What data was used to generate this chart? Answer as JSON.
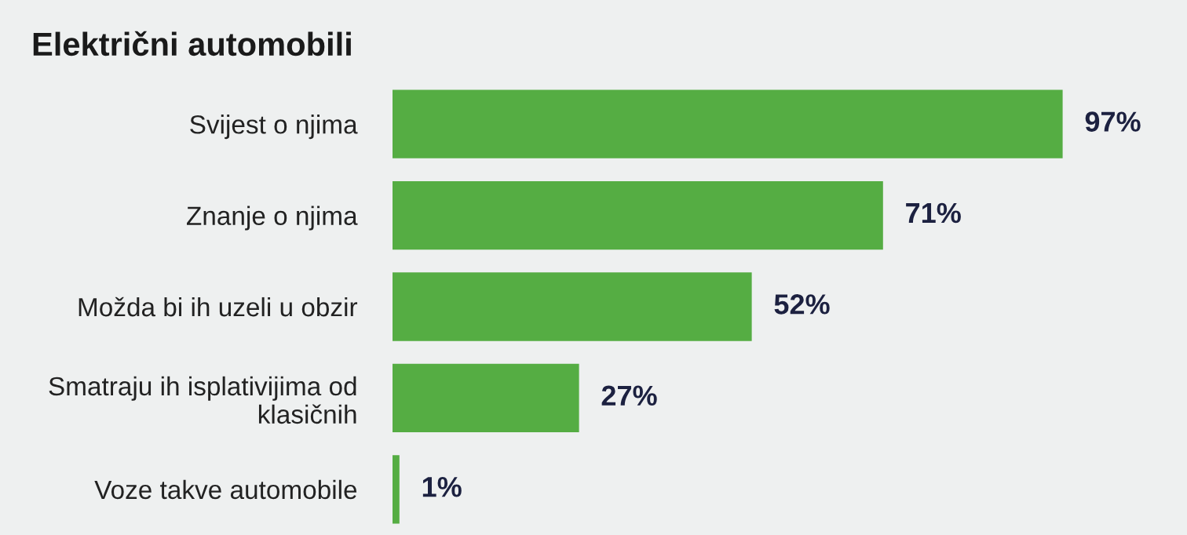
{
  "chart_data": {
    "type": "bar",
    "orientation": "horizontal",
    "title": "Električni automobili",
    "categories": [
      "Svijest o njima",
      "Znanje o njima",
      "Možda bi ih uzeli u obzir",
      "Smatraju ih isplativijima od\nklasičnih",
      "Voze takve automobile"
    ],
    "values": [
      97,
      71,
      52,
      27,
      1
    ],
    "value_labels": [
      "97%",
      "71%",
      "52%",
      "27%",
      "1%"
    ],
    "color": "#55ad43",
    "xlim": [
      0,
      115
    ],
    "tick_labels": "y",
    "grid": false,
    "legend": false
  }
}
